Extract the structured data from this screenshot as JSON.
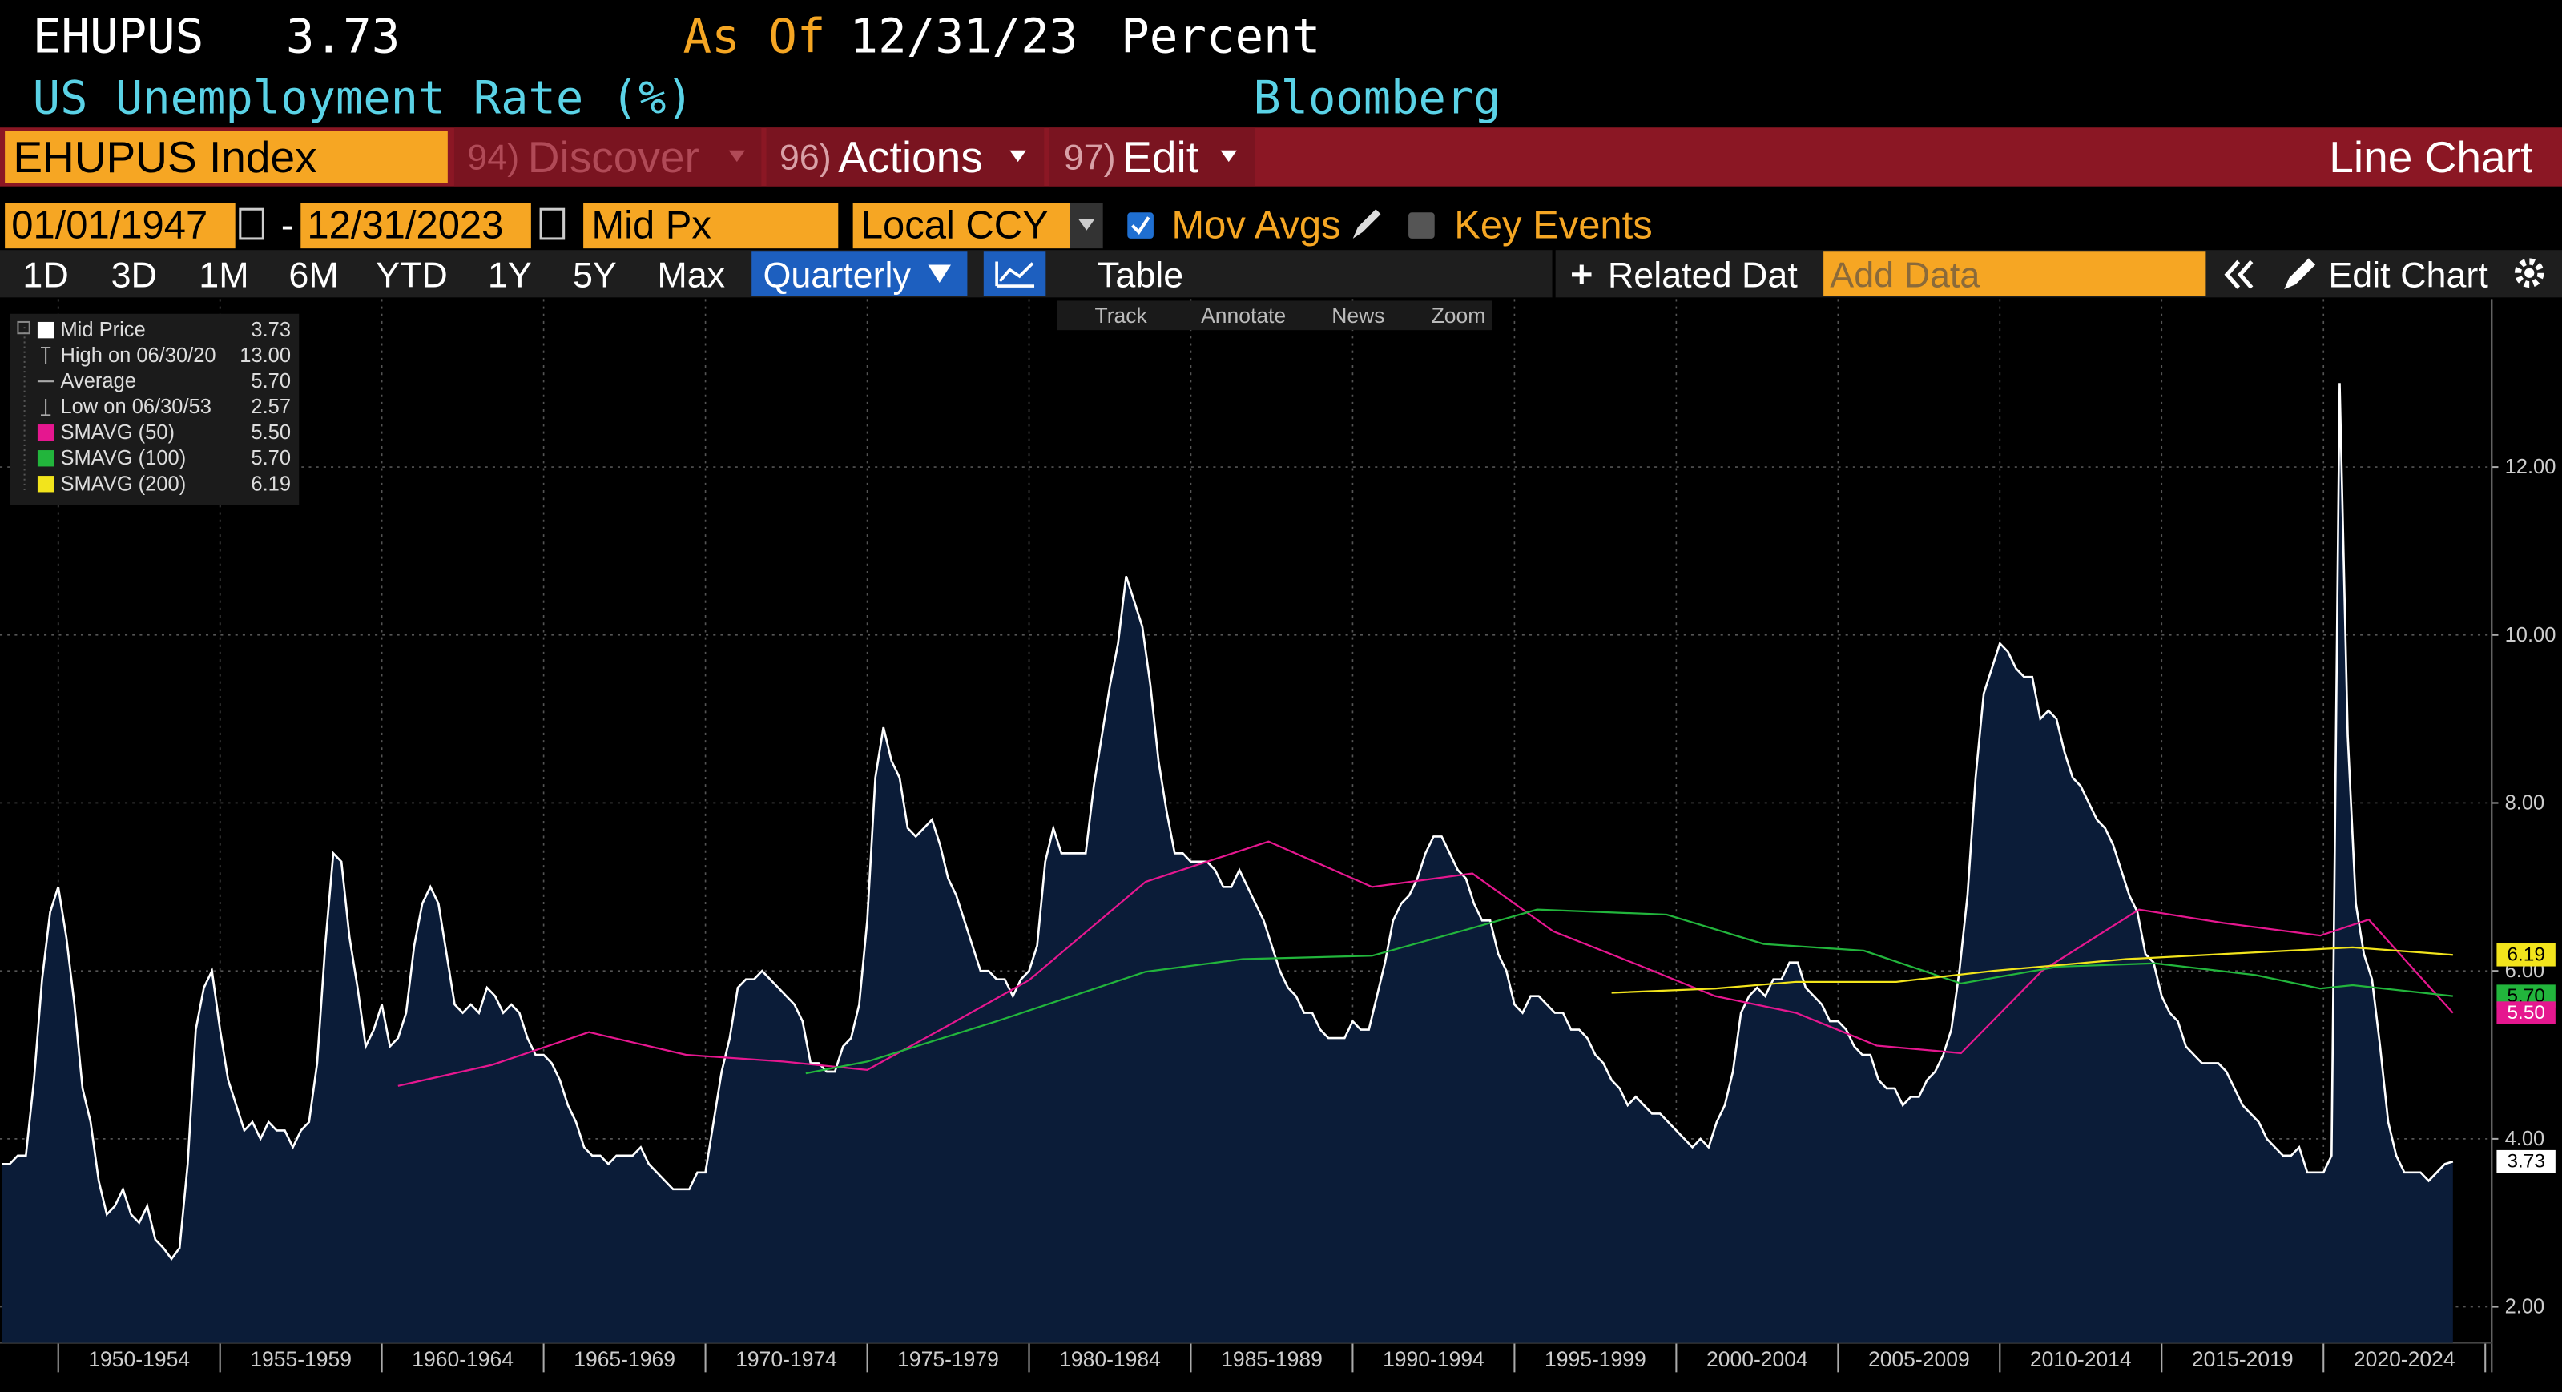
{
  "ui": {
    "header": {
      "ticker": "EHUPUS",
      "last": "3.73",
      "as_of_label": "As Of",
      "as_of": "12/31/23",
      "units": "Percent",
      "name": "US Unemployment Rate (%)",
      "source": "Bloomberg"
    },
    "menu": {
      "security": "EHUPUS Index",
      "items": [
        {
          "key": "94)",
          "label": "Discover"
        },
        {
          "key": "96)",
          "label": "Actions"
        },
        {
          "key": "97)",
          "label": "Edit"
        }
      ],
      "view": "Line Chart"
    },
    "settings": {
      "start": "01/01/1947",
      "separator": "-",
      "end": "12/31/2023",
      "field": "Mid Px",
      "currency": "Local CCY",
      "mov_avgs": "Mov Avgs",
      "key_events": "Key Events"
    },
    "ranges": [
      "1D",
      "3D",
      "1M",
      "6M",
      "YTD",
      "1Y",
      "5Y",
      "Max"
    ],
    "toolbar": {
      "period": "Quarterly",
      "table": "Table",
      "related": "Related Dat",
      "add_data": "Add Data",
      "edit_chart": "Edit Chart"
    },
    "tools": [
      "Track",
      "Annotate",
      "News",
      "Zoom"
    ]
  },
  "chart_data": {
    "type": "line",
    "xlim": [
      1948.2,
      2025.2
    ],
    "xticks": [
      {
        "value": 1952.5,
        "label": "1950-1954"
      },
      {
        "value": 1957.5,
        "label": "1955-1959"
      },
      {
        "value": 1962.5,
        "label": "1960-1964"
      },
      {
        "value": 1967.5,
        "label": "1965-1969"
      },
      {
        "value": 1972.5,
        "label": "1970-1974"
      },
      {
        "value": 1977.5,
        "label": "1975-1979"
      },
      {
        "value": 1982.5,
        "label": "1980-1984"
      },
      {
        "value": 1987.5,
        "label": "1985-1989"
      },
      {
        "value": 1992.5,
        "label": "1990-1994"
      },
      {
        "value": 1997.5,
        "label": "1995-1999"
      },
      {
        "value": 2002.5,
        "label": "2000-2004"
      },
      {
        "value": 2007.5,
        "label": "2005-2009"
      },
      {
        "value": 2012.5,
        "label": "2010-2014"
      },
      {
        "value": 2017.5,
        "label": "2015-2019"
      },
      {
        "value": 2022.5,
        "label": "2020-2024"
      }
    ],
    "ylim": [
      1.57,
      14.0
    ],
    "yticks": [
      {
        "value": 2,
        "label": "2.00"
      },
      {
        "value": 4,
        "label": "4.00"
      },
      {
        "value": 6,
        "label": "6.00"
      },
      {
        "value": 8,
        "label": "8.00"
      },
      {
        "value": 10,
        "label": "10.00"
      },
      {
        "value": 12,
        "label": "12.00"
      }
    ],
    "grid": true,
    "legend": "upper left",
    "stats": [
      {
        "name": "High on 06/30/20",
        "value": "13.00"
      },
      {
        "name": "Average",
        "value": "5.70"
      },
      {
        "name": "Low on 06/30/53",
        "value": "2.57"
      }
    ],
    "series": [
      {
        "name": "Mid Price",
        "color": "#ffffff",
        "fill": "#0b1c38",
        "legend_value": "3.73",
        "x": [
          1948.25,
          1948.5,
          1948.75,
          1949,
          1949.25,
          1949.5,
          1949.75,
          1950,
          1950.25,
          1950.5,
          1950.75,
          1951,
          1951.25,
          1951.5,
          1951.75,
          1952,
          1952.25,
          1952.5,
          1952.75,
          1953,
          1953.25,
          1953.5,
          1953.75,
          1954,
          1954.25,
          1954.5,
          1954.75,
          1955,
          1955.25,
          1955.5,
          1955.75,
          1956,
          1956.25,
          1956.5,
          1956.75,
          1957,
          1957.25,
          1957.5,
          1957.75,
          1958,
          1958.25,
          1958.5,
          1958.75,
          1959,
          1959.25,
          1959.5,
          1959.75,
          1960,
          1960.25,
          1960.5,
          1960.75,
          1961,
          1961.25,
          1961.5,
          1961.75,
          1962,
          1962.25,
          1962.5,
          1962.75,
          1963,
          1963.25,
          1963.5,
          1963.75,
          1964,
          1964.25,
          1964.5,
          1964.75,
          1965,
          1965.25,
          1965.5,
          1965.75,
          1966,
          1966.25,
          1966.5,
          1966.75,
          1967,
          1967.25,
          1967.5,
          1967.75,
          1968,
          1968.25,
          1968.5,
          1968.75,
          1969,
          1969.25,
          1969.5,
          1969.75,
          1970,
          1970.25,
          1970.5,
          1970.75,
          1971,
          1971.25,
          1971.5,
          1971.75,
          1972,
          1972.25,
          1972.5,
          1972.75,
          1973,
          1973.25,
          1973.5,
          1973.75,
          1974,
          1974.25,
          1974.5,
          1974.75,
          1975,
          1975.25,
          1975.5,
          1975.75,
          1976,
          1976.25,
          1976.5,
          1976.75,
          1977,
          1977.25,
          1977.5,
          1977.75,
          1978,
          1978.25,
          1978.5,
          1978.75,
          1979,
          1979.25,
          1979.5,
          1979.75,
          1980,
          1980.25,
          1980.5,
          1980.75,
          1981,
          1981.25,
          1981.5,
          1981.75,
          1982,
          1982.25,
          1982.5,
          1982.75,
          1983,
          1983.25,
          1983.5,
          1983.75,
          1984,
          1984.25,
          1984.5,
          1984.75,
          1985,
          1985.25,
          1985.5,
          1985.75,
          1986,
          1986.25,
          1986.5,
          1986.75,
          1987,
          1987.25,
          1987.5,
          1987.75,
          1988,
          1988.25,
          1988.5,
          1988.75,
          1989,
          1989.25,
          1989.5,
          1989.75,
          1990,
          1990.25,
          1990.5,
          1990.75,
          1991,
          1991.25,
          1991.5,
          1991.75,
          1992,
          1992.25,
          1992.5,
          1992.75,
          1993,
          1993.25,
          1993.5,
          1993.75,
          1994,
          1994.25,
          1994.5,
          1994.75,
          1995,
          1995.25,
          1995.5,
          1995.75,
          1996,
          1996.25,
          1996.5,
          1996.75,
          1997,
          1997.25,
          1997.5,
          1997.75,
          1998,
          1998.25,
          1998.5,
          1998.75,
          1999,
          1999.25,
          1999.5,
          1999.75,
          2000,
          2000.25,
          2000.5,
          2000.75,
          2001,
          2001.25,
          2001.5,
          2001.75,
          2002,
          2002.25,
          2002.5,
          2002.75,
          2003,
          2003.25,
          2003.5,
          2003.75,
          2004,
          2004.25,
          2004.5,
          2004.75,
          2005,
          2005.25,
          2005.5,
          2005.75,
          2006,
          2006.25,
          2006.5,
          2006.75,
          2007,
          2007.25,
          2007.5,
          2007.75,
          2008,
          2008.25,
          2008.5,
          2008.75,
          2009,
          2009.25,
          2009.5,
          2009.75,
          2010,
          2010.25,
          2010.5,
          2010.75,
          2011,
          2011.25,
          2011.5,
          2011.75,
          2012,
          2012.25,
          2012.5,
          2012.75,
          2013,
          2013.25,
          2013.5,
          2013.75,
          2014,
          2014.25,
          2014.5,
          2014.75,
          2015,
          2015.25,
          2015.5,
          2015.75,
          2016,
          2016.25,
          2016.5,
          2016.75,
          2017,
          2017.25,
          2017.5,
          2017.75,
          2018,
          2018.25,
          2018.5,
          2018.75,
          2019,
          2019.25,
          2019.5,
          2019.75,
          2020,
          2020.25,
          2020.5,
          2020.75,
          2021,
          2021.25,
          2021.5,
          2021.75,
          2022,
          2022.25,
          2022.5,
          2022.75,
          2023,
          2023.25,
          2023.5,
          2023.75,
          2024
        ],
        "values": [
          3.7,
          3.7,
          3.8,
          3.8,
          4.7,
          5.9,
          6.7,
          7.0,
          6.4,
          5.6,
          4.6,
          4.2,
          3.5,
          3.1,
          3.2,
          3.4,
          3.1,
          3.0,
          3.2,
          2.8,
          2.7,
          2.57,
          2.7,
          3.7,
          5.3,
          5.8,
          6.0,
          5.3,
          4.7,
          4.4,
          4.1,
          4.2,
          4.0,
          4.2,
          4.1,
          4.1,
          3.9,
          4.1,
          4.2,
          4.9,
          6.3,
          7.4,
          7.3,
          6.4,
          5.8,
          5.1,
          5.3,
          5.6,
          5.1,
          5.2,
          5.5,
          6.3,
          6.8,
          7.0,
          6.8,
          6.2,
          5.6,
          5.5,
          5.6,
          5.5,
          5.8,
          5.7,
          5.5,
          5.6,
          5.5,
          5.2,
          5.0,
          5.0,
          4.9,
          4.7,
          4.4,
          4.2,
          3.9,
          3.8,
          3.8,
          3.7,
          3.8,
          3.8,
          3.8,
          3.9,
          3.7,
          3.6,
          3.5,
          3.4,
          3.4,
          3.4,
          3.6,
          3.6,
          4.2,
          4.8,
          5.2,
          5.8,
          5.9,
          5.9,
          6.0,
          5.9,
          5.8,
          5.7,
          5.6,
          5.4,
          4.9,
          4.9,
          4.8,
          4.8,
          5.1,
          5.2,
          5.6,
          6.6,
          8.3,
          8.9,
          8.5,
          8.3,
          7.7,
          7.6,
          7.7,
          7.8,
          7.5,
          7.1,
          6.9,
          6.6,
          6.3,
          6.0,
          6.0,
          5.9,
          5.9,
          5.7,
          5.9,
          6.0,
          6.3,
          7.3,
          7.7,
          7.4,
          7.4,
          7.4,
          7.4,
          8.2,
          8.8,
          9.4,
          9.9,
          10.7,
          10.4,
          10.1,
          9.4,
          8.5,
          7.9,
          7.4,
          7.4,
          7.3,
          7.3,
          7.3,
          7.2,
          7.0,
          7.0,
          7.2,
          7.0,
          6.8,
          6.6,
          6.3,
          6.0,
          5.8,
          5.7,
          5.5,
          5.5,
          5.3,
          5.2,
          5.2,
          5.2,
          5.4,
          5.3,
          5.3,
          5.7,
          6.1,
          6.6,
          6.8,
          6.9,
          7.1,
          7.4,
          7.6,
          7.6,
          7.4,
          7.2,
          7.1,
          6.8,
          6.6,
          6.6,
          6.2,
          6.0,
          5.6,
          5.5,
          5.7,
          5.7,
          5.6,
          5.5,
          5.5,
          5.3,
          5.3,
          5.2,
          5.0,
          4.9,
          4.7,
          4.6,
          4.4,
          4.5,
          4.4,
          4.3,
          4.3,
          4.2,
          4.1,
          4.0,
          3.9,
          4.0,
          3.9,
          4.2,
          4.4,
          4.8,
          5.5,
          5.7,
          5.8,
          5.7,
          5.9,
          5.9,
          6.1,
          6.1,
          5.8,
          5.7,
          5.6,
          5.4,
          5.4,
          5.3,
          5.1,
          5.0,
          5.0,
          4.7,
          4.6,
          4.6,
          4.4,
          4.5,
          4.5,
          4.7,
          4.8,
          5.0,
          5.3,
          6.0,
          6.9,
          8.3,
          9.3,
          9.6,
          9.9,
          9.8,
          9.6,
          9.5,
          9.5,
          9.0,
          9.1,
          9.0,
          8.6,
          8.3,
          8.2,
          8.0,
          7.8,
          7.7,
          7.5,
          7.2,
          6.9,
          6.7,
          6.2,
          6.1,
          5.7,
          5.5,
          5.4,
          5.1,
          5.0,
          4.9,
          4.9,
          4.9,
          4.8,
          4.6,
          4.4,
          4.3,
          4.2,
          4.0,
          3.9,
          3.8,
          3.8,
          3.9,
          3.6,
          3.6,
          3.6,
          3.8,
          13.0,
          8.8,
          6.8,
          6.2,
          5.9,
          5.1,
          4.2,
          3.8,
          3.6,
          3.6,
          3.6,
          3.5,
          3.6,
          3.7,
          3.73
        ]
      },
      {
        "name": "SMAVG (50)",
        "color": "#e5178f",
        "legend_value": "5.50",
        "x": [
          1960.5,
          1963.4,
          1966.4,
          1969.4,
          1972.4,
          1975,
          1977.5,
          1980,
          1983.6,
          1987.4,
          1990.6,
          1993.7,
          1996.2,
          1998.7,
          2001.2,
          2003.7,
          2006.2,
          2008.8,
          2011.3,
          2014.3,
          2016.9,
          2019.9,
          2021.4,
          2024
        ],
        "values": [
          4.63,
          4.88,
          5.27,
          5.0,
          4.92,
          4.82,
          5.35,
          5.89,
          7.06,
          7.54,
          7.0,
          7.16,
          6.47,
          6.09,
          5.7,
          5.5,
          5.11,
          5.02,
          6.0,
          6.73,
          6.57,
          6.42,
          6.61,
          5.5
        ]
      },
      {
        "name": "SMAVG (100)",
        "color": "#22b53c",
        "legend_value": "5.70",
        "x": [
          1973.1,
          1975,
          1979,
          1983.6,
          1986.6,
          1990.6,
          1993.7,
          1995.7,
          1999.7,
          2002.7,
          2005.8,
          2008.8,
          2011.8,
          2014.8,
          2017.9,
          2019.9,
          2020.9,
          2024
        ],
        "values": [
          4.78,
          4.92,
          5.4,
          5.99,
          6.14,
          6.18,
          6.51,
          6.73,
          6.67,
          6.32,
          6.24,
          5.85,
          6.05,
          6.09,
          5.95,
          5.79,
          5.83,
          5.7
        ]
      },
      {
        "name": "SMAVG (200)",
        "color": "#f2e41c",
        "legend_value": "6.19",
        "x": [
          1998,
          2001.2,
          2003.7,
          2006.8,
          2009.8,
          2013.9,
          2017.9,
          2020.9,
          2024
        ],
        "values": [
          5.74,
          5.79,
          5.87,
          5.87,
          6.0,
          6.14,
          6.22,
          6.28,
          6.19
        ]
      }
    ]
  }
}
